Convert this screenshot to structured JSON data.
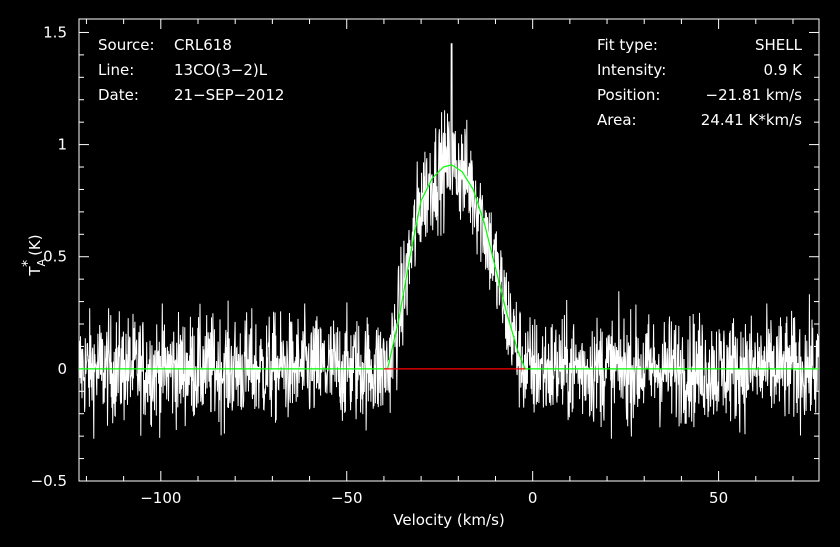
{
  "chart_data": {
    "type": "line",
    "xlabel": "Velocity (km/s)",
    "ylabel": "T",
    "ylabel_sup": "*",
    "ylabel_sub": "A",
    "ylabel_unit": "(K)",
    "xlim": [
      -122,
      77
    ],
    "ylim": [
      -0.5,
      1.56
    ],
    "x_ticks": [
      -100,
      -50,
      0,
      50
    ],
    "x_tick_labels": [
      "−100",
      "−50",
      "0",
      "50"
    ],
    "y_ticks": [
      -0.5,
      0,
      0.5,
      1,
      1.5
    ],
    "y_tick_labels": [
      "−0.5",
      "0",
      "0.5",
      "1",
      "1.5"
    ],
    "grid": false,
    "colors": {
      "background": "#000000",
      "axes": "#ffffff",
      "spectrum": "#ffffff",
      "fit": "#00ff00",
      "baseline": "#ff0000"
    },
    "info_left": {
      "rows": [
        {
          "key": "Source:",
          "value": "CRL618"
        },
        {
          "key": "Line:",
          "value": "13CO(3−2)L"
        },
        {
          "key": "Date:",
          "value": "21−SEP−2012"
        }
      ]
    },
    "info_right": {
      "rows": [
        {
          "key": "Fit type:",
          "value": "SHELL"
        },
        {
          "key": "Intensity:",
          "value": "0.9 K"
        },
        {
          "key": "Position:",
          "value": "−21.81 km/s"
        },
        {
          "key": "Area:",
          "value": "24.41 K*km/s"
        }
      ]
    },
    "fit": {
      "type": "SHELL",
      "intensity_K": 0.9,
      "position_kms": -21.81,
      "area_Kkms": 24.41,
      "x": [
        -122,
        -39,
        -36,
        -33,
        -30,
        -27,
        -24,
        -21.81,
        -19,
        -16,
        -13,
        -10,
        -7,
        -4,
        -2,
        77
      ],
      "y": [
        0,
        0,
        0.22,
        0.5,
        0.75,
        0.85,
        0.9,
        0.91,
        0.88,
        0.8,
        0.65,
        0.45,
        0.25,
        0.08,
        0,
        0
      ]
    },
    "baseline_segment": {
      "x": [
        -40,
        -2
      ],
      "y": [
        0,
        0
      ]
    },
    "series": [
      {
        "x_start": -122,
        "x_end": 77,
        "rms_noise_K": 0.12,
        "peak_K": 1.45,
        "peak_x_kms": -21.8
      }
    ]
  }
}
